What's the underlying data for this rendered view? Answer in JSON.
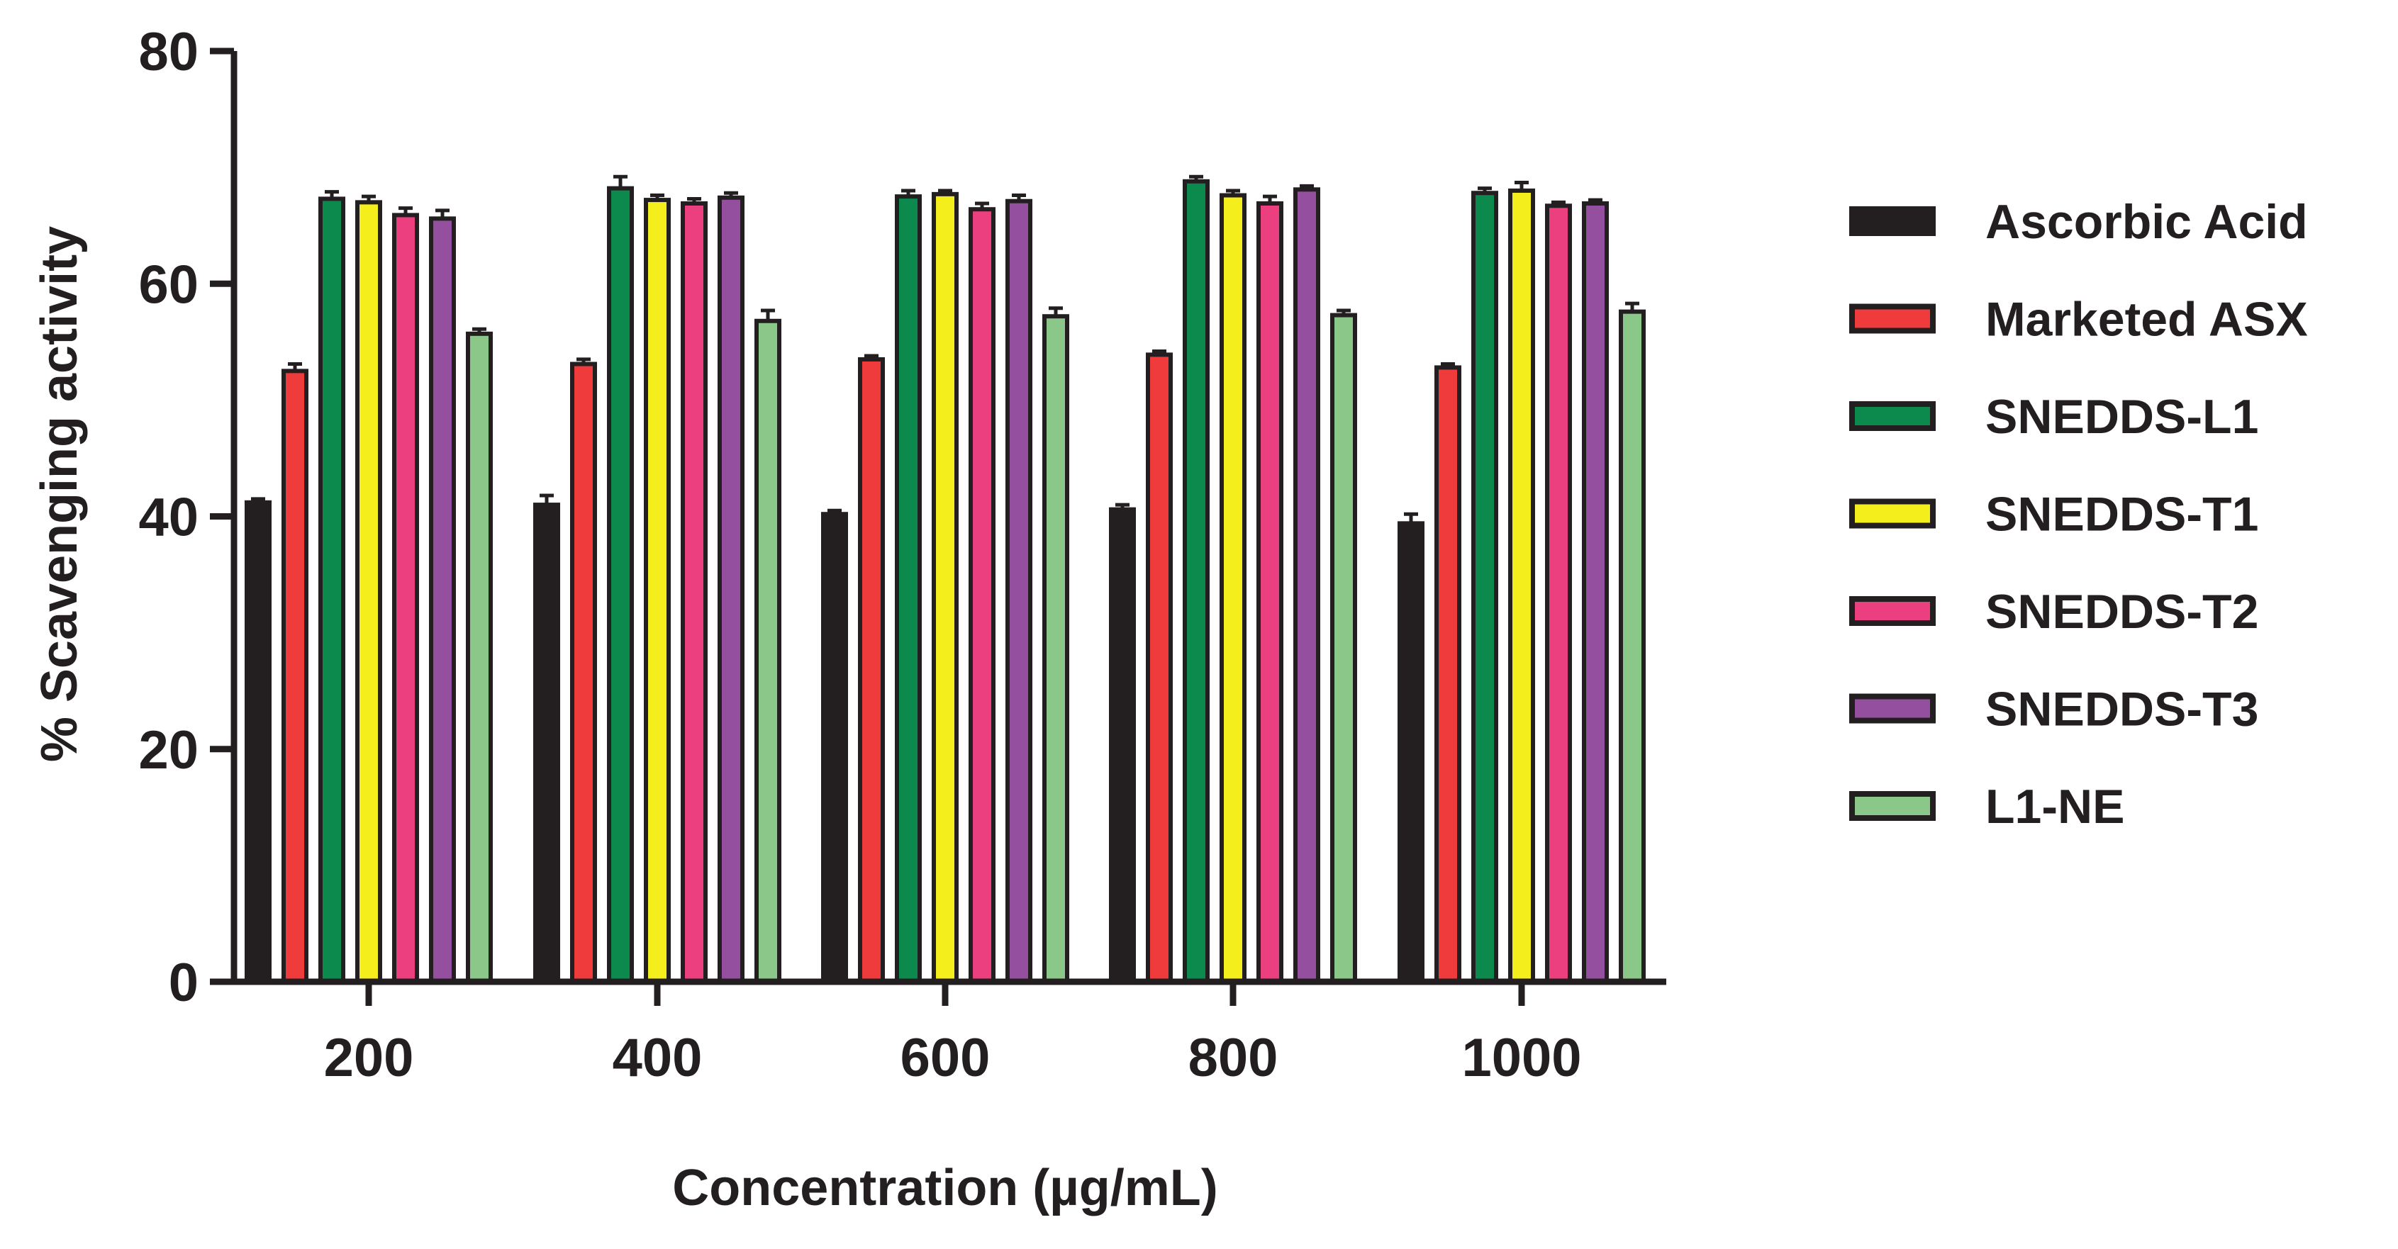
{
  "chart_data": {
    "type": "bar",
    "title": "",
    "xlabel": "Concentration (µg/mL)",
    "ylabel": "% Scavenging activity",
    "ylim": [
      0,
      80
    ],
    "yticks": [
      "0",
      "20",
      "40",
      "60",
      "80"
    ],
    "categories": [
      "200",
      "400",
      "600",
      "800",
      "1000"
    ],
    "legend_position": "right",
    "series": [
      {
        "name": "Ascorbic Acid",
        "color": "#231f20",
        "values": [
          41.2,
          41.0,
          40.2,
          40.6,
          39.4
        ],
        "errors": [
          0.3,
          0.8,
          0.3,
          0.4,
          0.8
        ]
      },
      {
        "name": "Marketed ASX",
        "color": "#ef3b3b",
        "values": [
          52.5,
          53.1,
          53.5,
          53.9,
          52.8
        ],
        "errors": [
          0.6,
          0.4,
          0.3,
          0.3,
          0.3
        ]
      },
      {
        "name": "SNEDDS-L1",
        "color": "#0c8a4d",
        "values": [
          67.3,
          68.2,
          67.5,
          68.8,
          67.8
        ],
        "errors": [
          0.6,
          1.0,
          0.5,
          0.4,
          0.4
        ]
      },
      {
        "name": "SNEDDS-T1",
        "color": "#f4ee1c",
        "values": [
          67.0,
          67.2,
          67.7,
          67.6,
          68.0
        ],
        "errors": [
          0.5,
          0.4,
          0.3,
          0.4,
          0.7
        ]
      },
      {
        "name": "SNEDDS-T2",
        "color": "#ec3f80",
        "values": [
          65.9,
          66.9,
          66.4,
          66.9,
          66.7
        ],
        "errors": [
          0.6,
          0.4,
          0.5,
          0.6,
          0.3
        ]
      },
      {
        "name": "SNEDDS-T3",
        "color": "#944f9e",
        "values": [
          65.6,
          67.4,
          67.1,
          68.1,
          66.9
        ],
        "errors": [
          0.7,
          0.4,
          0.5,
          0.3,
          0.3
        ]
      },
      {
        "name": "L1-NE",
        "color": "#8bc789",
        "values": [
          55.7,
          56.8,
          57.2,
          57.3,
          57.6
        ],
        "errors": [
          0.4,
          0.9,
          0.7,
          0.4,
          0.7
        ]
      }
    ]
  }
}
